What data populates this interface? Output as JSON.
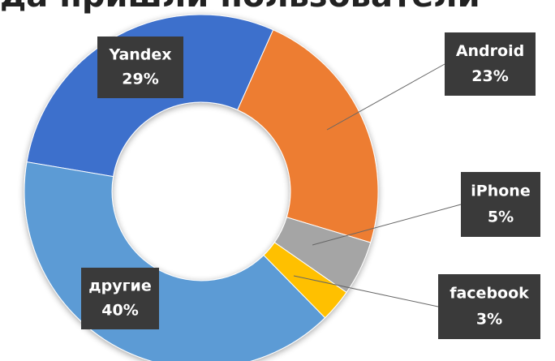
{
  "chart_data": {
    "type": "donut",
    "title": "да пришли пользователи",
    "categories": [
      "Yandex",
      "Android",
      "iPhone",
      "facebook",
      "другие"
    ],
    "values": [
      29,
      23,
      5,
      3,
      40
    ],
    "value_labels": [
      "29%",
      "23%",
      "5%",
      "3%",
      "40%"
    ],
    "colors": [
      "#3d70cc",
      "#ed7d31",
      "#a5a5a5",
      "#ffc000",
      "#5b9bd5"
    ]
  }
}
